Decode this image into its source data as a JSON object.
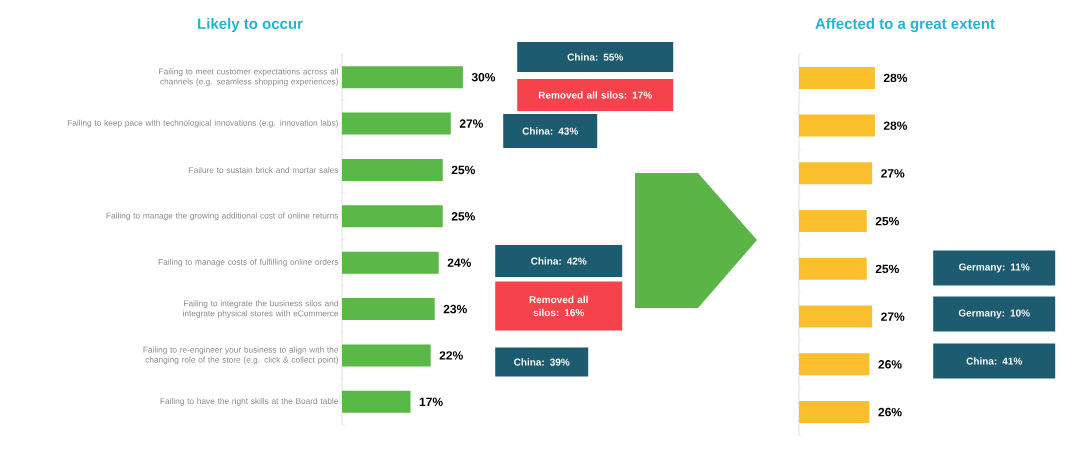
{
  "chart_data": [
    {
      "type": "bar",
      "orientation": "horizontal",
      "title": "Likely to occur",
      "tick_labels": "y",
      "categories": [
        "Failing to meet customer expectations across all channels (e.g. seamless shopping experiences)",
        "Failing to keep pace with technological innovations (e.g. innovation labs)",
        "Failure to sustain brick and mortar sales",
        "Failing to manage the growing additional cost of online returns",
        "Failing to manage costs of fulfilling online orders",
        "Failing to integrate the business silos and integrate physical stores with eCommerce",
        "Failing to re-engineer your business to align with the changing role of the store (e.g. click & collect point)",
        "Failing to have the right skills at the Board table"
      ],
      "values": [
        30,
        27,
        25,
        25,
        24,
        23,
        22,
        17
      ],
      "value_labels": [
        "30%",
        "27%",
        "25%",
        "25%",
        "24%",
        "23%",
        "22%",
        "17%"
      ],
      "color": "#5ab946",
      "annotations": [
        "China: 55%",
        "Removed all silos: 17%",
        "China: 43%",
        "China: 42%",
        "Removed all silos: 16%",
        "China: 39%"
      ]
    },
    {
      "type": "bar",
      "orientation": "horizontal",
      "title": "Affected to a great extent",
      "tick_labels": false,
      "categories": [
        null,
        null,
        null,
        null,
        null,
        null,
        null,
        null
      ],
      "values": [
        28,
        28,
        27,
        25,
        25,
        27,
        26,
        26
      ],
      "value_labels": [
        "28%",
        "28%",
        "27%",
        "25%",
        "25%",
        "27%",
        "26%",
        "26%"
      ],
      "color": "#fbbf2e",
      "annotations": [
        "Germany: 11%",
        "Germany: 10%",
        "China: 41%"
      ]
    }
  ]
}
